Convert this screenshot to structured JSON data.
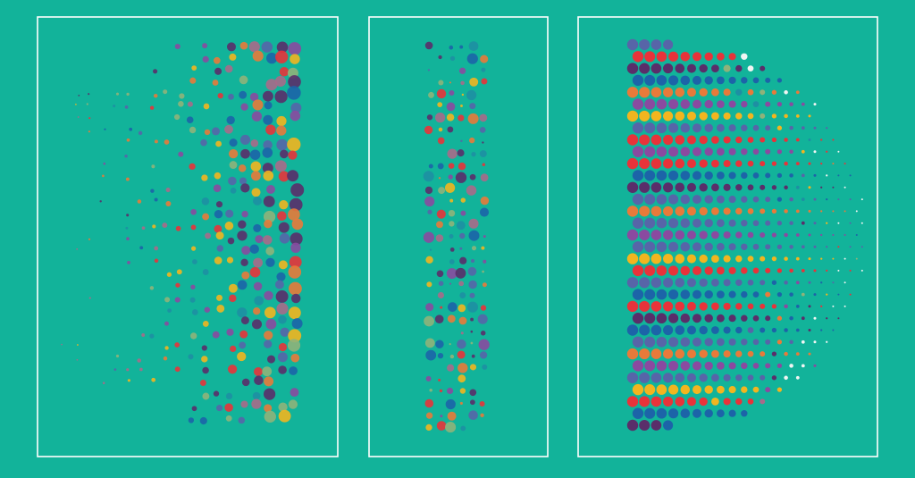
{
  "background_color": "#12b39a",
  "frame_color": "#ffffff",
  "palette": {
    "red": "#e8333a",
    "orange": "#e87a3a",
    "yellow": "#f2b51f",
    "blue": "#1c64a8",
    "slate": "#5765a8",
    "purple": "#8a4aa0",
    "plum": "#5a2e6a",
    "teal": "#1e8fa3",
    "sage": "#8fb27a",
    "mauve": "#a86a8a",
    "white": "#f0f5f3"
  },
  "panels": [
    {
      "name": "scattered-dots-panel",
      "style": "scatter"
    },
    {
      "name": "narrow-column-panel",
      "style": "column"
    },
    {
      "name": "striped-rows-panel",
      "style": "rows"
    }
  ],
  "row_colors": [
    "slate",
    "red",
    "plum",
    "blue",
    "orange",
    "purple",
    "yellow",
    "slate",
    "red",
    "purple",
    "red",
    "blue",
    "plum",
    "slate",
    "orange",
    "slate",
    "purple",
    "slate",
    "yellow",
    "red",
    "slate",
    "blue",
    "red",
    "plum",
    "blue",
    "slate",
    "orange",
    "purple",
    "slate",
    "yellow",
    "red",
    "blue",
    "plum"
  ]
}
